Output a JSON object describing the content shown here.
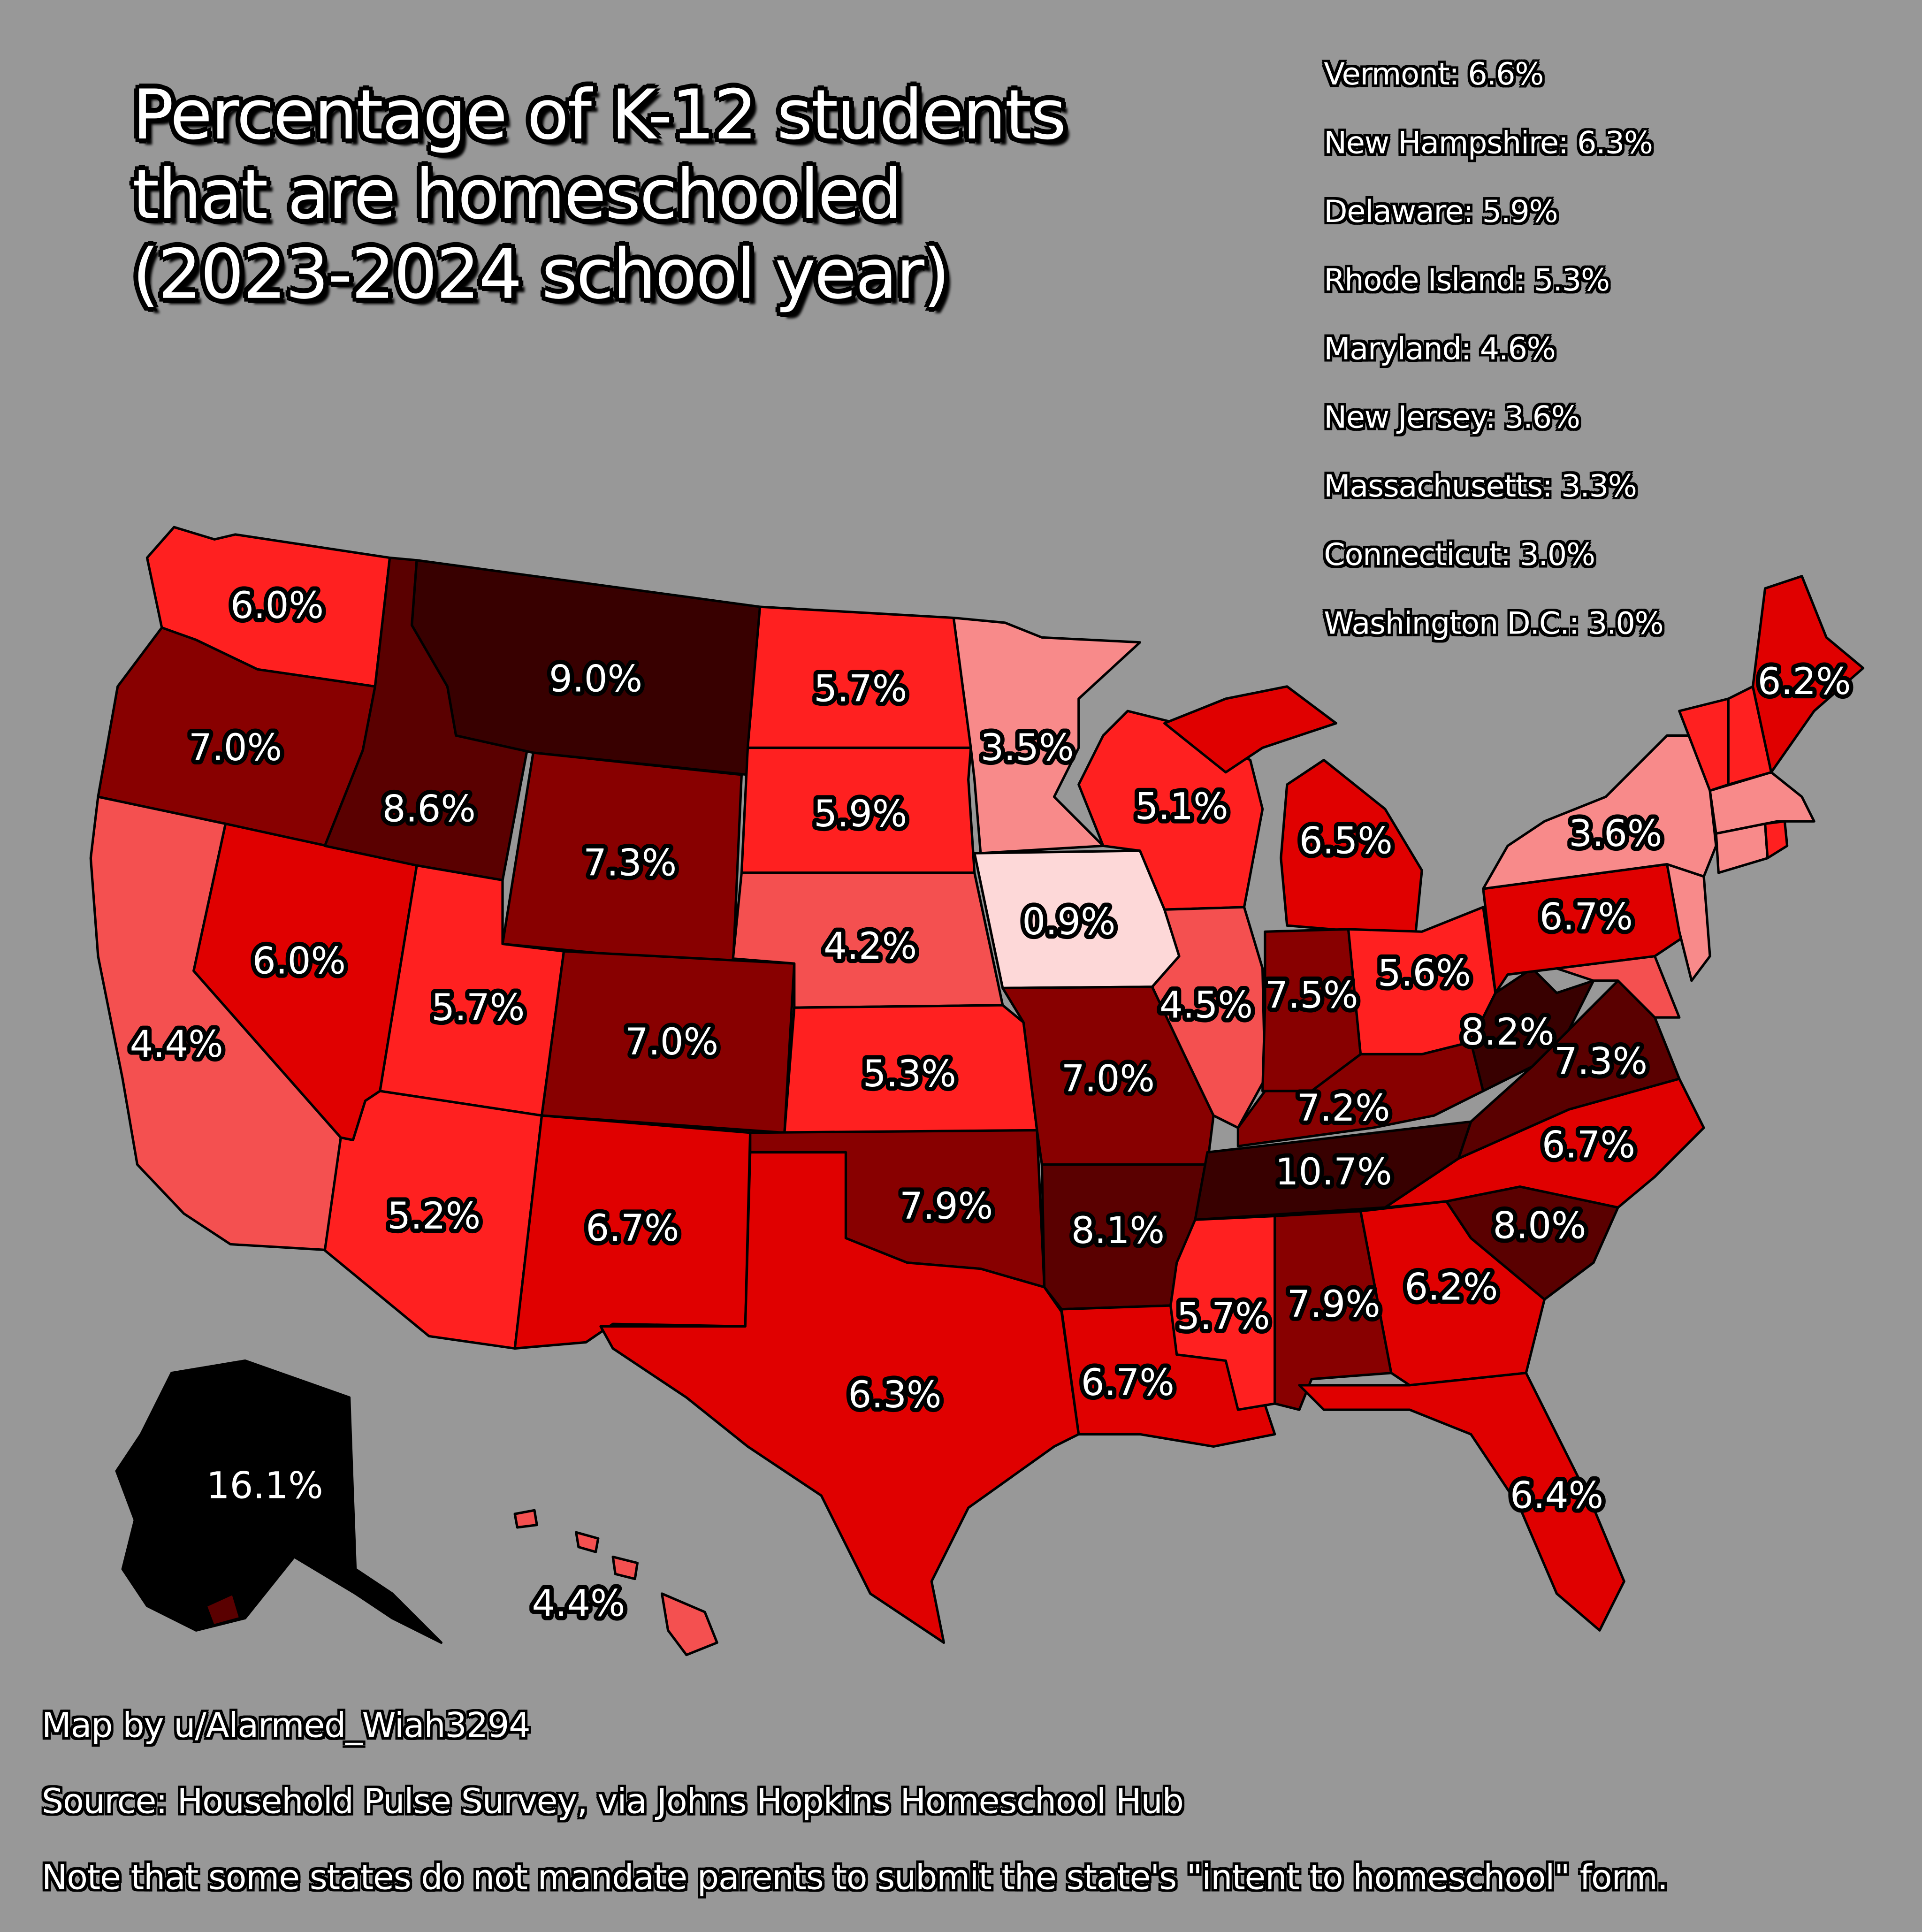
{
  "title": {
    "line1": "Percentage of K-12 students",
    "line2": "that are homeschooled",
    "line3": "(2023-2024 school year)"
  },
  "northeast_list": [
    "Vermont: 6.6%",
    "New Hampshire: 6.3%",
    "Delaware: 5.9%",
    "Rhode Island: 5.3%",
    "Maryland: 4.6%",
    "New Jersey: 3.6%",
    "Massachusetts: 3.3%",
    "Connecticut: 3.0%",
    "Washington D.C.: 3.0%"
  ],
  "states": {
    "washington": "6.0%",
    "oregon": "7.0%",
    "california": "4.4%",
    "nevada": "6.0%",
    "idaho": "8.6%",
    "montana": "9.0%",
    "wyoming": "7.3%",
    "utah": "5.7%",
    "arizona": "5.2%",
    "colorado": "7.0%",
    "new_mexico": "6.7%",
    "north_dakota": "5.7%",
    "south_dakota": "5.9%",
    "nebraska": "4.2%",
    "kansas": "5.3%",
    "oklahoma": "7.9%",
    "texas": "6.3%",
    "minnesota": "3.5%",
    "iowa": "0.9%",
    "missouri": "7.0%",
    "arkansas": "8.1%",
    "louisiana": "6.7%",
    "wisconsin": "5.1%",
    "illinois": "4.5%",
    "michigan": "6.5%",
    "indiana": "7.5%",
    "ohio": "5.6%",
    "kentucky": "7.2%",
    "tennessee": "10.7%",
    "mississippi": "5.7%",
    "alabama": "7.9%",
    "georgia": "6.2%",
    "florida": "6.4%",
    "south_carolina": "8.0%",
    "north_carolina": "6.7%",
    "virginia": "7.3%",
    "west_virginia": "8.2%",
    "pennsylvania": "6.7%",
    "new_york": "3.6%",
    "maine": "6.2%",
    "alaska": "16.1%",
    "hawaii": "4.4%"
  },
  "footer": {
    "credit": "Map by u/Alarmed_Wiah3294",
    "source": "Source: Household Pulse Survey, via Johns Hopkins Homeschool Hub",
    "note": "Note that some states do not mandate parents to submit the state's \"intent to homeschool\" form."
  },
  "colors": {
    "background": "#989898",
    "level_lightest": "#fdd8d8",
    "level_light": "#f88a8a",
    "level_mid_light": "#f45050",
    "level_mid": "#ff2020",
    "level_red": "#e00000",
    "level_dark": "#880000",
    "level_darker": "#5a0000",
    "level_darkest": "#380000",
    "level_black": "#000000"
  }
}
